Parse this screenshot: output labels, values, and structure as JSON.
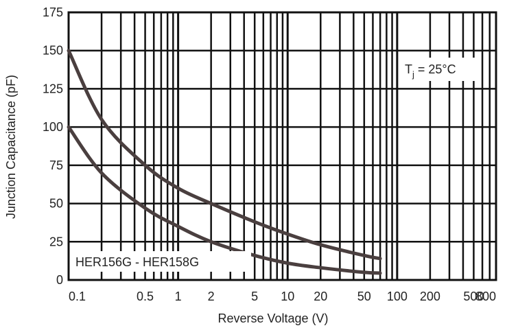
{
  "chart_data": {
    "type": "line",
    "title": "",
    "xlabel": "Reverse Voltage (V)",
    "ylabel": "Junction Capacitance (pF)",
    "x_scale": "log",
    "xlim": [
      0.1,
      800
    ],
    "ylim": [
      0,
      175
    ],
    "x_ticks": [
      0.1,
      0.5,
      1,
      2,
      5,
      10,
      20,
      50,
      100,
      200,
      500,
      800
    ],
    "x_tick_labels": [
      "0.1",
      "0.5",
      "1",
      "2",
      "5",
      "10",
      "20",
      "50",
      "100",
      "200",
      "500",
      "800"
    ],
    "y_ticks": [
      0,
      25,
      50,
      75,
      100,
      125,
      150,
      175
    ],
    "y_tick_labels": [
      "0",
      "25",
      "50",
      "75",
      "100",
      "125",
      "150",
      "175"
    ],
    "grid": true,
    "annotations": {
      "temperature_main": "T",
      "temperature_sub": "j",
      "temperature_value": " = 25°C",
      "series_label": "HER156G - HER158G"
    },
    "series": [
      {
        "name": "",
        "x": [
          0.1,
          0.2,
          0.5,
          1,
          2,
          5,
          10,
          20,
          50,
          70
        ],
        "y": [
          150,
          105,
          75,
          60,
          50,
          38,
          30,
          23,
          16,
          14
        ]
      },
      {
        "name": "",
        "x": [
          0.1,
          0.2,
          0.5,
          1,
          2,
          5,
          10,
          20,
          50,
          70
        ],
        "y": [
          100,
          70,
          47,
          35,
          25,
          16,
          11,
          8,
          5,
          4.5
        ]
      }
    ],
    "colors": {
      "grid": "#111111",
      "curve": "#4a3f3f",
      "text": "#222222"
    }
  }
}
